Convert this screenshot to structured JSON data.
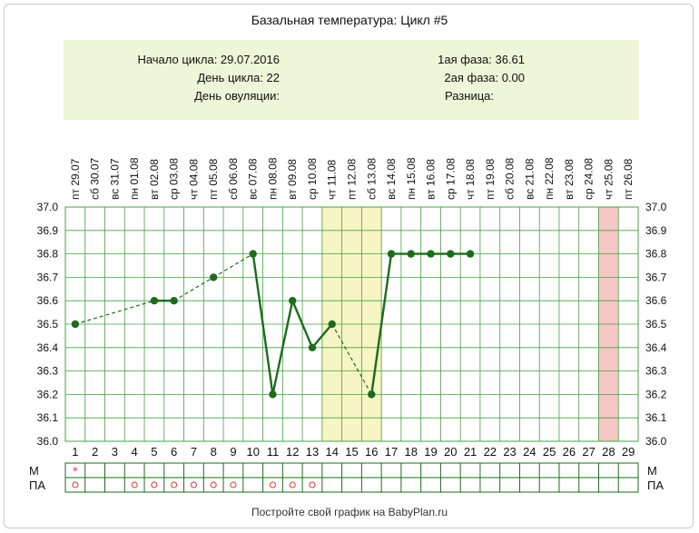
{
  "title": "Базальная температура: Цикл #5",
  "info": {
    "cycle_start": "Начало цикла: 29.07.2016",
    "cycle_day": "День цикла: 22",
    "ovulation_day": "День овуляции:",
    "phase1": "1ая фаза: 36.61",
    "phase2": "2ая фаза: 0.00",
    "difference": "Разница:"
  },
  "footer": "Постройте свой график на BabyPlan.ru",
  "row_labels": {
    "m": "М",
    "pa": "ПА"
  },
  "colors": {
    "line": "#1e6b1e",
    "grid": "#44a044",
    "info_bg": "#eef5d8",
    "ovulation_band": "#f7f5c4",
    "expected_period": "#f7c6c6",
    "mark": "#e05050"
  },
  "chart_data": {
    "type": "line",
    "title": "Базальная температура: Цикл #5",
    "ylim": [
      36.0,
      37.0
    ],
    "y_ticks": [
      "37.0",
      "36.9",
      "36.8",
      "36.7",
      "36.6",
      "36.5",
      "36.4",
      "36.3",
      "36.2",
      "36.1",
      "36.0"
    ],
    "x_days": [
      "1",
      "2",
      "3",
      "4",
      "5",
      "6",
      "7",
      "8",
      "9",
      "10",
      "11",
      "12",
      "13",
      "14",
      "15",
      "16",
      "17",
      "18",
      "19",
      "20",
      "21",
      "22",
      "23",
      "24",
      "25",
      "26",
      "27",
      "28",
      "29"
    ],
    "dates": [
      "29.07",
      "30.07",
      "31.07",
      "01.08",
      "02.08",
      "03.08",
      "04.08",
      "05.08",
      "06.08",
      "07.08",
      "08.08",
      "09.08",
      "10.08",
      "11.08",
      "12.08",
      "13.08",
      "14.08",
      "15.08",
      "16.08",
      "17.08",
      "18.08",
      "19.08",
      "20.08",
      "21.08",
      "22.08",
      "23.08",
      "24.08",
      "25.08",
      "26.08"
    ],
    "weekdays": [
      "пт",
      "сб",
      "вс",
      "пн",
      "вт",
      "ср",
      "чт",
      "пт",
      "сб",
      "вс",
      "пн",
      "вт",
      "ср",
      "чт",
      "пт",
      "сб",
      "вс",
      "пн",
      "вт",
      "ср",
      "чт",
      "пт",
      "сб",
      "вс",
      "пн",
      "вт",
      "ср",
      "чт",
      "пт"
    ],
    "series": [
      {
        "temperatures": [
          36.5,
          null,
          null,
          null,
          36.6,
          36.6,
          null,
          36.7,
          null,
          36.8,
          36.2,
          36.6,
          36.4,
          36.5,
          null,
          36.2,
          36.8,
          36.8,
          36.8,
          36.8,
          36.8
        ]
      }
    ],
    "ovulation_band_days": [
      14,
      16
    ],
    "expected_period_day": 28,
    "m_marks": [
      1
    ],
    "pa_marks": [
      1,
      4,
      5,
      6,
      7,
      8,
      9,
      11,
      12,
      13
    ]
  }
}
